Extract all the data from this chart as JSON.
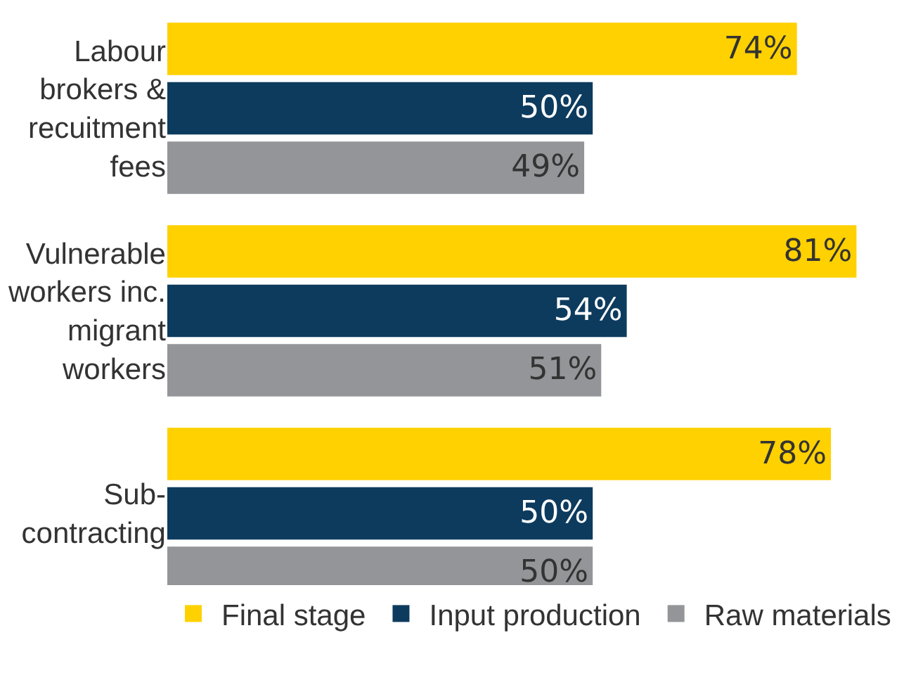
{
  "chart_data": {
    "type": "bar",
    "orientation": "horizontal",
    "categories": [
      "Labour\nbrokers &\nrecuitment\nfees",
      "Vulnerable\nworkers inc.\nmigrant\nworkers",
      "Sub-\ncontracting"
    ],
    "series": [
      {
        "name": "Final stage",
        "color": "#ffd100",
        "values": [
          74,
          81,
          78
        ],
        "value_labels": [
          "74%",
          "81%",
          "78%"
        ]
      },
      {
        "name": "Input production",
        "color": "#0d3b5e",
        "values": [
          50,
          54,
          50
        ],
        "value_labels": [
          "50%",
          "54%",
          "50%"
        ]
      },
      {
        "name": "Raw materials",
        "color": "#939598",
        "values": [
          49,
          51,
          50
        ],
        "value_labels": [
          "49%",
          "51%",
          "50%"
        ]
      }
    ],
    "legend": "bottom"
  }
}
